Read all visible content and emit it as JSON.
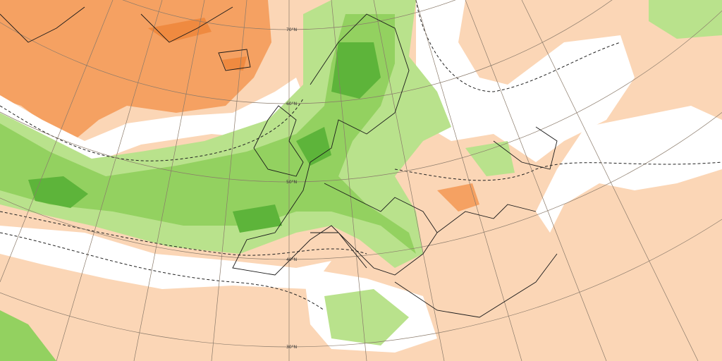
{
  "latitude_labels": [
    "70°N",
    "60°N",
    "50°N",
    "40°N",
    "30°N"
  ]
}
